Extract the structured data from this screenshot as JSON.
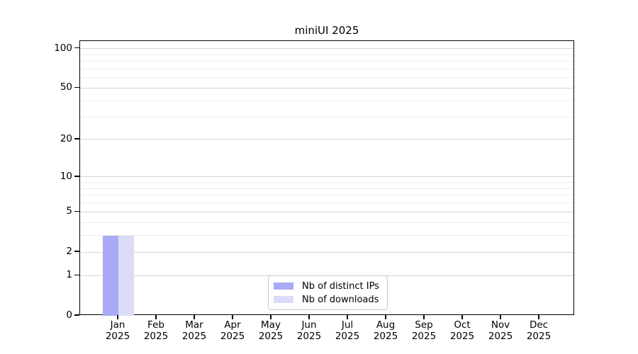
{
  "title": "miniUI 2025",
  "chart_data": {
    "type": "bar",
    "title": "miniUI 2025",
    "categories": [
      "Jan 2025",
      "Feb 2025",
      "Mar 2025",
      "Apr 2025",
      "May 2025",
      "Jun 2025",
      "Jul 2025",
      "Aug 2025",
      "Sep 2025",
      "Oct 2025",
      "Nov 2025",
      "Dec 2025"
    ],
    "months": [
      "Jan",
      "Feb",
      "Mar",
      "Apr",
      "May",
      "Jun",
      "Jul",
      "Aug",
      "Sep",
      "Oct",
      "Nov",
      "Dec"
    ],
    "year": "2025",
    "series": [
      {
        "name": "Nb of distinct IPs",
        "color": "#a9a9f5",
        "values": [
          3,
          0,
          0,
          0,
          0,
          0,
          0,
          0,
          0,
          0,
          0,
          0
        ]
      },
      {
        "name": "Nb of downloads",
        "color": "#dbdbf8",
        "values": [
          3,
          0,
          0,
          0,
          0,
          0,
          0,
          0,
          0,
          0,
          0,
          0
        ]
      }
    ],
    "xlabel": "",
    "ylabel": "",
    "y_scale": "log1p",
    "y_ticks": [
      0,
      1,
      2,
      5,
      10,
      20,
      50,
      100
    ],
    "y_minor_gridlines": [
      3,
      4,
      6,
      7,
      8,
      9,
      30,
      40,
      60,
      70,
      80,
      90
    ],
    "ylim": [
      0,
      113
    ],
    "grid": "horizontal major + minor",
    "legend_position": "bottom-center-inside"
  },
  "colors": {
    "background": "#ffffff",
    "axis": "#000000",
    "grid_major": "#d4d4d4",
    "grid_minor": "#ededed",
    "legend_border": "#c9c9c9",
    "bar_distinct_ips": "#a9a9f5",
    "bar_downloads": "#dbdbf8"
  }
}
